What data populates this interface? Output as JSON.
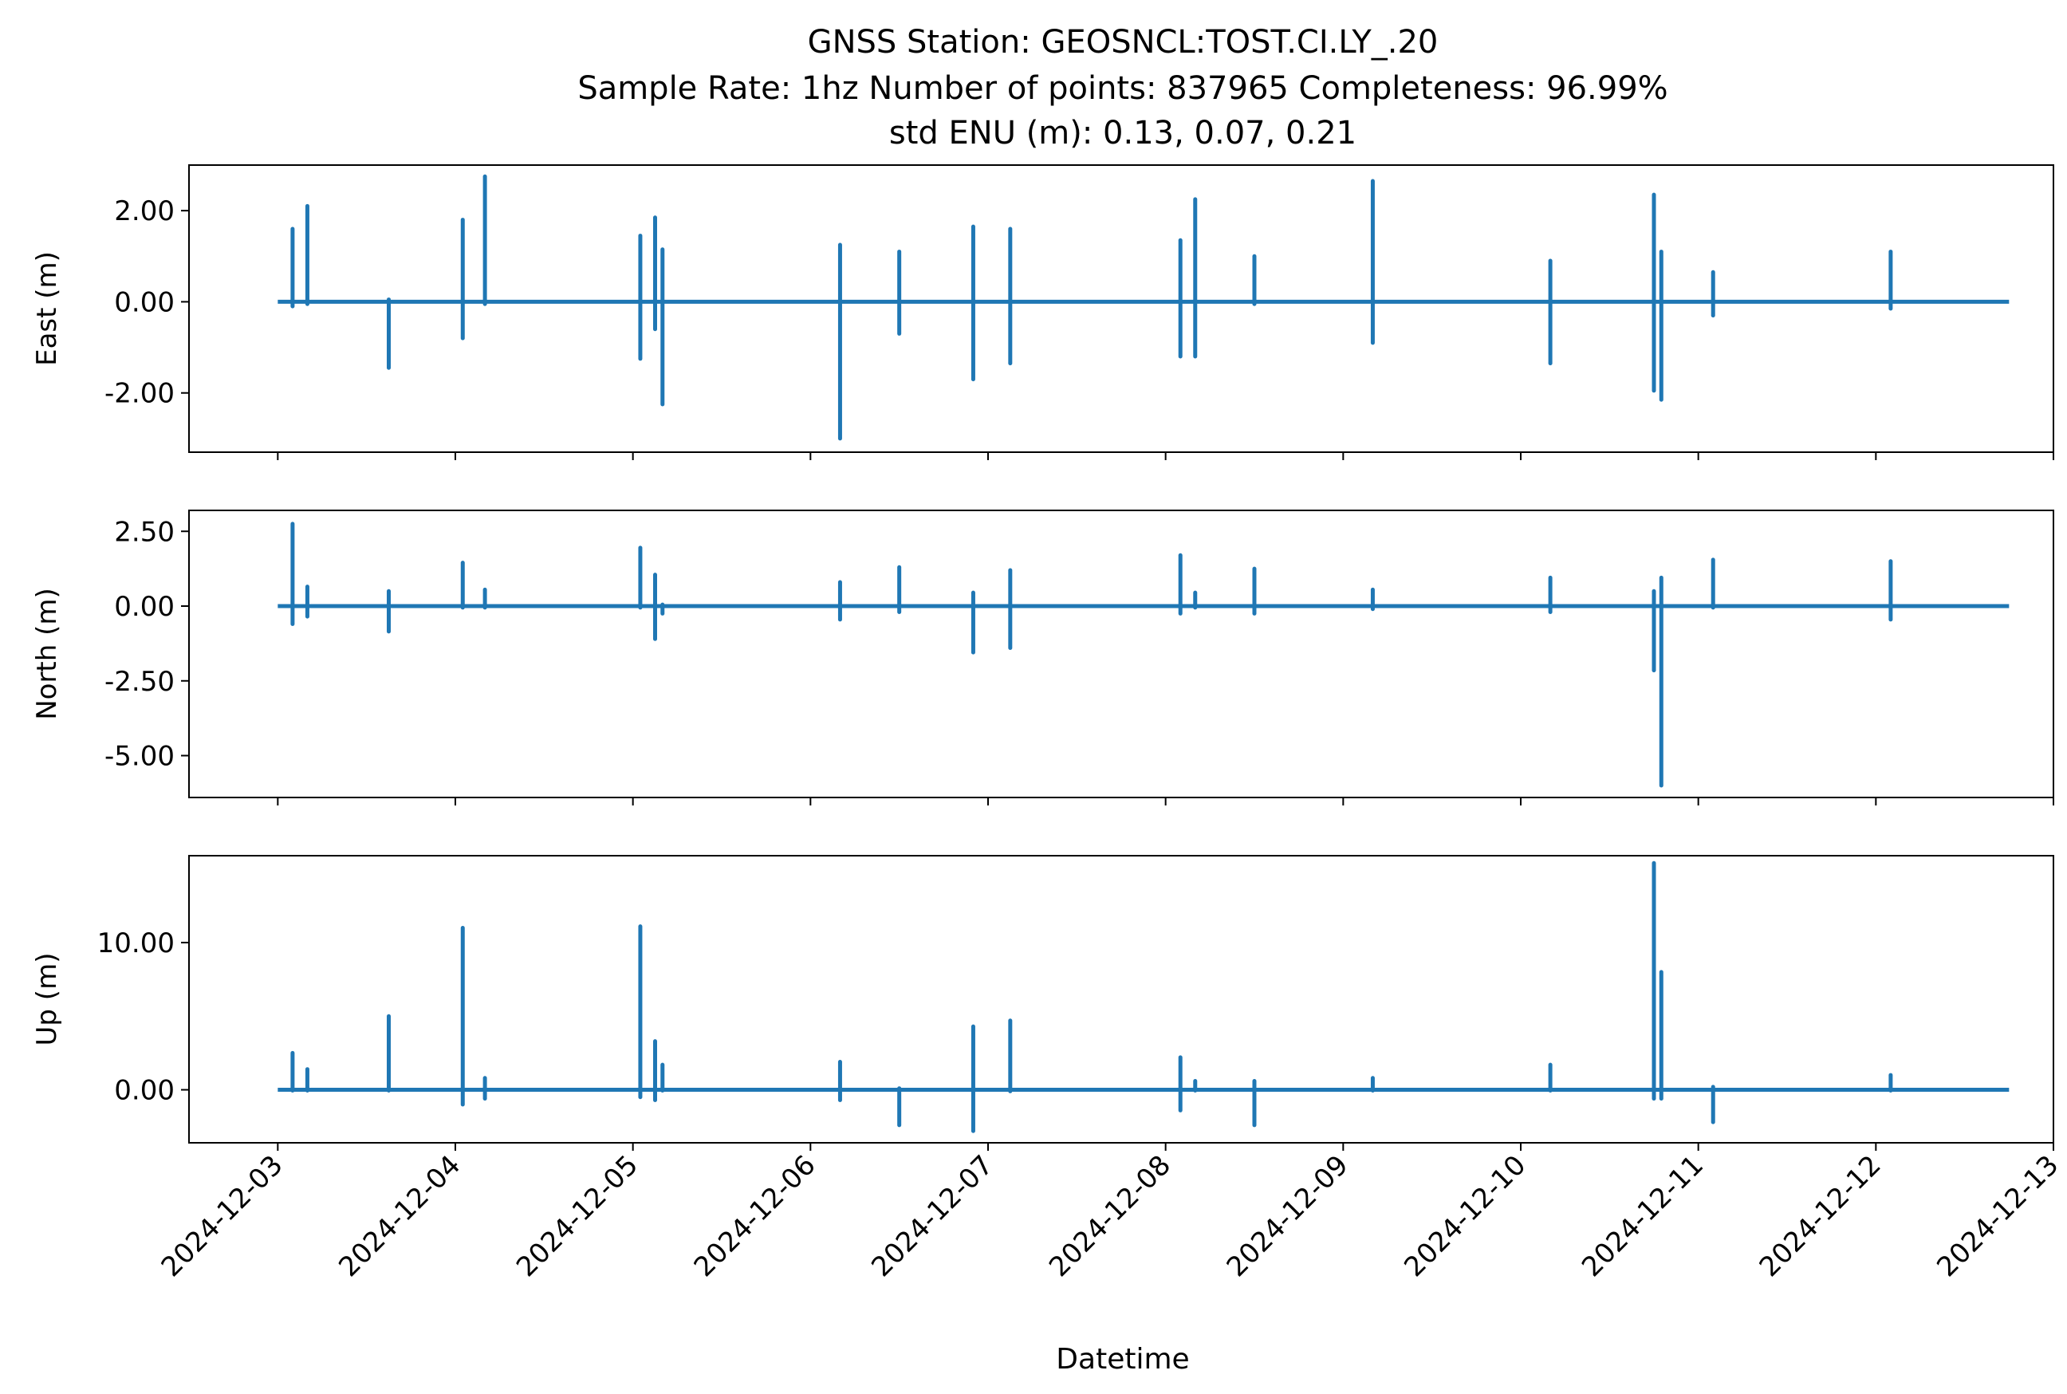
{
  "figure": {
    "title_line1": "GNSS Station: GEOSNCL:TOST.CI.LY_.20",
    "title_line2": "Sample Rate: 1hz   Number of points: 837965    Completeness:  96.99%",
    "title_line3": "std ENU (m):  0.13, 0.07, 0.21",
    "xlabel": "Datetime",
    "line_color": "#1f77b4"
  },
  "chart_data": [
    {
      "type": "line",
      "name": "east",
      "ylabel": "East (m)",
      "ylim": [
        -3.3,
        3.0
      ],
      "yticks": [
        2.0,
        0.0,
        -2.0
      ],
      "ytick_labels": [
        "2.00",
        "0.00",
        "-2.00"
      ],
      "xlim": [
        "2024-12-02T12:00",
        "2024-12-13T00:00"
      ],
      "xticks": [
        "2024-12-03",
        "2024-12-04",
        "2024-12-05",
        "2024-12-06",
        "2024-12-07",
        "2024-12-08",
        "2024-12-09",
        "2024-12-10",
        "2024-12-11",
        "2024-12-12",
        "2024-12-13"
      ],
      "baseline": 0.0,
      "series_start": "2024-12-03T00:00",
      "series_end": "2024-12-12T18:00",
      "spikes": [
        {
          "t": "2024-12-03T02:00",
          "min": -0.1,
          "max": 1.6
        },
        {
          "t": "2024-12-03T04:00",
          "min": -0.05,
          "max": 2.1
        },
        {
          "t": "2024-12-03T15:00",
          "min": -1.45,
          "max": 0.05
        },
        {
          "t": "2024-12-04T01:00",
          "min": -0.8,
          "max": 1.8
        },
        {
          "t": "2024-12-04T04:00",
          "min": -0.05,
          "max": 2.75
        },
        {
          "t": "2024-12-05T01:00",
          "min": -1.25,
          "max": 1.45
        },
        {
          "t": "2024-12-05T03:00",
          "min": -0.6,
          "max": 1.85
        },
        {
          "t": "2024-12-05T04:00",
          "min": -2.25,
          "max": 1.15
        },
        {
          "t": "2024-12-06T04:00",
          "min": -3.0,
          "max": 1.25
        },
        {
          "t": "2024-12-06T12:00",
          "min": -0.7,
          "max": 1.1
        },
        {
          "t": "2024-12-06T22:00",
          "min": -1.7,
          "max": 1.65
        },
        {
          "t": "2024-12-07T03:00",
          "min": -1.35,
          "max": 1.6
        },
        {
          "t": "2024-12-08T02:00",
          "min": -1.2,
          "max": 1.35
        },
        {
          "t": "2024-12-08T04:00",
          "min": -1.2,
          "max": 2.25
        },
        {
          "t": "2024-12-08T12:00",
          "min": -0.05,
          "max": 1.0
        },
        {
          "t": "2024-12-09T04:00",
          "min": -0.9,
          "max": 2.65
        },
        {
          "t": "2024-12-10T04:00",
          "min": -1.35,
          "max": 0.9
        },
        {
          "t": "2024-12-10T18:00",
          "min": -1.95,
          "max": 2.35
        },
        {
          "t": "2024-12-10T19:00",
          "min": -2.15,
          "max": 1.1
        },
        {
          "t": "2024-12-11T02:00",
          "min": -0.3,
          "max": 0.65
        },
        {
          "t": "2024-12-12T02:00",
          "min": -0.15,
          "max": 1.1
        }
      ]
    },
    {
      "type": "line",
      "name": "north",
      "ylabel": "North (m)",
      "ylim": [
        -6.4,
        3.2
      ],
      "yticks": [
        2.5,
        0.0,
        -2.5,
        -5.0
      ],
      "ytick_labels": [
        "2.50",
        "0.00",
        "-2.50",
        "-5.00"
      ],
      "xlim": [
        "2024-12-02T12:00",
        "2024-12-13T00:00"
      ],
      "xticks": [
        "2024-12-03",
        "2024-12-04",
        "2024-12-05",
        "2024-12-06",
        "2024-12-07",
        "2024-12-08",
        "2024-12-09",
        "2024-12-10",
        "2024-12-11",
        "2024-12-12",
        "2024-12-13"
      ],
      "baseline": 0.0,
      "series_start": "2024-12-03T00:00",
      "series_end": "2024-12-12T18:00",
      "spikes": [
        {
          "t": "2024-12-03T02:00",
          "min": -0.6,
          "max": 2.75
        },
        {
          "t": "2024-12-03T04:00",
          "min": -0.35,
          "max": 0.65
        },
        {
          "t": "2024-12-03T15:00",
          "min": -0.85,
          "max": 0.5
        },
        {
          "t": "2024-12-04T01:00",
          "min": -0.05,
          "max": 1.45
        },
        {
          "t": "2024-12-04T04:00",
          "min": -0.05,
          "max": 0.55
        },
        {
          "t": "2024-12-05T01:00",
          "min": -0.05,
          "max": 1.95
        },
        {
          "t": "2024-12-05T03:00",
          "min": -1.1,
          "max": 1.05
        },
        {
          "t": "2024-12-05T04:00",
          "min": -0.25,
          "max": 0.05
        },
        {
          "t": "2024-12-06T04:00",
          "min": -0.45,
          "max": 0.8
        },
        {
          "t": "2024-12-06T12:00",
          "min": -0.2,
          "max": 1.3
        },
        {
          "t": "2024-12-06T22:00",
          "min": -1.55,
          "max": 0.45
        },
        {
          "t": "2024-12-07T03:00",
          "min": -1.4,
          "max": 1.2
        },
        {
          "t": "2024-12-08T02:00",
          "min": -0.25,
          "max": 1.7
        },
        {
          "t": "2024-12-08T04:00",
          "min": -0.05,
          "max": 0.45
        },
        {
          "t": "2024-12-08T12:00",
          "min": -0.25,
          "max": 1.25
        },
        {
          "t": "2024-12-09T04:00",
          "min": -0.1,
          "max": 0.55
        },
        {
          "t": "2024-12-10T04:00",
          "min": -0.2,
          "max": 0.95
        },
        {
          "t": "2024-12-10T18:00",
          "min": -2.15,
          "max": 0.5
        },
        {
          "t": "2024-12-10T19:00",
          "min": -6.0,
          "max": 0.95
        },
        {
          "t": "2024-12-11T02:00",
          "min": -0.05,
          "max": 1.55
        },
        {
          "t": "2024-12-12T02:00",
          "min": -0.45,
          "max": 1.5
        }
      ]
    },
    {
      "type": "line",
      "name": "up",
      "ylabel": "Up (m)",
      "ylim": [
        -3.6,
        15.9
      ],
      "yticks": [
        10.0,
        0.0
      ],
      "ytick_labels": [
        "10.00",
        "0.00"
      ],
      "xlim": [
        "2024-12-02T12:00",
        "2024-12-13T00:00"
      ],
      "xticks": [
        "2024-12-03",
        "2024-12-04",
        "2024-12-05",
        "2024-12-06",
        "2024-12-07",
        "2024-12-08",
        "2024-12-09",
        "2024-12-10",
        "2024-12-11",
        "2024-12-12",
        "2024-12-13"
      ],
      "xtick_labels": [
        "2024-12-03",
        "2024-12-04",
        "2024-12-05",
        "2024-12-06",
        "2024-12-07",
        "2024-12-08",
        "2024-12-09",
        "2024-12-10",
        "2024-12-11",
        "2024-12-12",
        "2024-12-13"
      ],
      "baseline": 0.0,
      "series_start": "2024-12-03T00:00",
      "series_end": "2024-12-12T18:00",
      "spikes": [
        {
          "t": "2024-12-03T02:00",
          "min": -0.05,
          "max": 2.5
        },
        {
          "t": "2024-12-03T04:00",
          "min": -0.05,
          "max": 1.4
        },
        {
          "t": "2024-12-03T15:00",
          "min": -0.05,
          "max": 5.0
        },
        {
          "t": "2024-12-04T01:00",
          "min": -1.0,
          "max": 11.0
        },
        {
          "t": "2024-12-04T04:00",
          "min": -0.6,
          "max": 0.8
        },
        {
          "t": "2024-12-05T01:00",
          "min": -0.5,
          "max": 11.1
        },
        {
          "t": "2024-12-05T03:00",
          "min": -0.7,
          "max": 3.3
        },
        {
          "t": "2024-12-05T04:00",
          "min": -0.05,
          "max": 1.7
        },
        {
          "t": "2024-12-06T04:00",
          "min": -0.7,
          "max": 1.9
        },
        {
          "t": "2024-12-06T12:00",
          "min": -2.4,
          "max": 0.1
        },
        {
          "t": "2024-12-06T22:00",
          "min": -2.8,
          "max": 4.3
        },
        {
          "t": "2024-12-07T03:00",
          "min": -0.1,
          "max": 4.7
        },
        {
          "t": "2024-12-08T02:00",
          "min": -1.4,
          "max": 2.2
        },
        {
          "t": "2024-12-08T04:00",
          "min": -0.05,
          "max": 0.6
        },
        {
          "t": "2024-12-08T12:00",
          "min": -2.4,
          "max": 0.6
        },
        {
          "t": "2024-12-09T04:00",
          "min": -0.05,
          "max": 0.8
        },
        {
          "t": "2024-12-10T04:00",
          "min": -0.05,
          "max": 1.7
        },
        {
          "t": "2024-12-10T18:00",
          "min": -0.6,
          "max": 15.4
        },
        {
          "t": "2024-12-10T19:00",
          "min": -0.6,
          "max": 8.0
        },
        {
          "t": "2024-12-11T02:00",
          "min": -2.2,
          "max": 0.2
        },
        {
          "t": "2024-12-12T02:00",
          "min": -0.05,
          "max": 1.0
        }
      ]
    }
  ]
}
